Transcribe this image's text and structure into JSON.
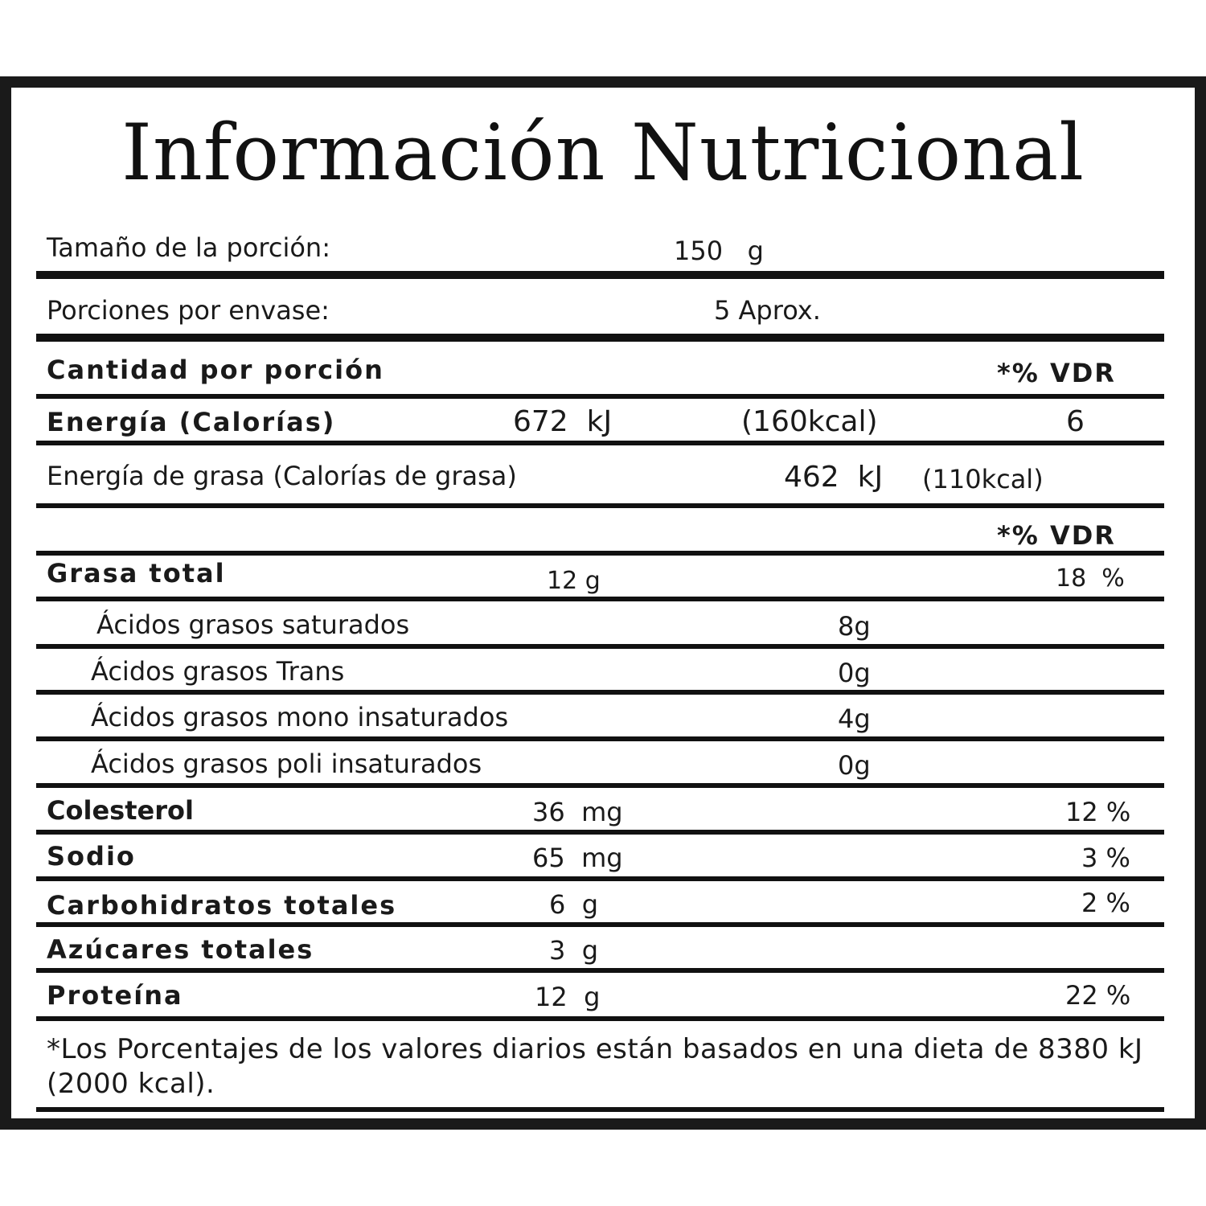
{
  "title": "Información Nutricional",
  "serving": {
    "label": "Tamaño de la porción:",
    "value": "150   g"
  },
  "servings_per_container": {
    "label": "Porciones por envase:",
    "value": "5 Aprox."
  },
  "header": {
    "label": "Cantidad por porción",
    "vdr": "*% VDR"
  },
  "energy": {
    "label": "Energía (Calorías)",
    "kj": "672  kJ",
    "kcal": "(160kcal)",
    "vdr": "6"
  },
  "fat_energy": {
    "label": "Energía de grasa (Calorías de grasa)",
    "kj": "462  kJ",
    "kcal": "(110kcal)"
  },
  "vdr_header": "*% VDR",
  "total_fat": {
    "label": "Grasa total",
    "amount": "12 g",
    "vdr": "18  %"
  },
  "fat_subitems": [
    {
      "label": "Ácidos grasos saturados",
      "amount": "8g"
    },
    {
      "label": "Ácidos grasos Trans",
      "amount": "0g"
    },
    {
      "label": "Ácidos grasos mono insaturados",
      "amount": "4g"
    },
    {
      "label": "Ácidos grasos poli insaturados",
      "amount": "0g"
    }
  ],
  "nutrients": [
    {
      "label": "Colesterol",
      "amount": "36  mg",
      "vdr": "12 %"
    },
    {
      "label": "Sodio",
      "amount": "65  mg",
      "vdr": "3 %"
    },
    {
      "label": "Carbohidratos totales",
      "amount": "6  g",
      "vdr": "2 %"
    },
    {
      "label": "Azúcares totales",
      "amount": "3  g",
      "vdr": ""
    },
    {
      "label": "Proteína",
      "amount": "12  g",
      "vdr": "22 %"
    }
  ],
  "footnote": "*Los Porcentajes de los valores diarios están basados en una dieta de 8380 kJ (2000 kcal)."
}
